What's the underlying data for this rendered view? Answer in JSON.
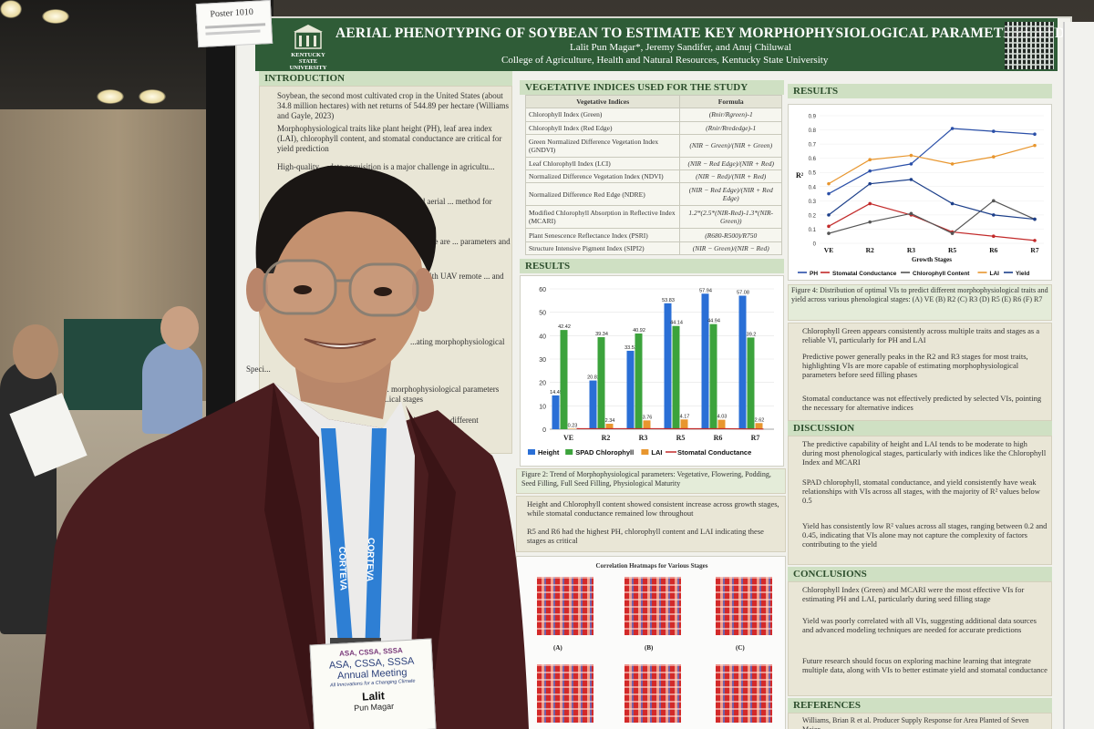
{
  "poster": {
    "title": "AERIAL PHENOTYPING OF SOYBEAN TO ESTIMATE KEY MORPHOPHYSIOLOGICAL PARAMETERS AND YIELD",
    "authors": "Lalit Pun Magar*, Jeremy Sandifer, and Anuj Chiluwal",
    "affiliation": "College of Agriculture, Health and Natural Resources, Kentucky State University",
    "logo_text": "KENTUCKY STATE UNIVERSITY",
    "poster_tag": "Poster 1010",
    "sections": {
      "introduction": "INTRODUCTION",
      "vegetative_indices": "VEGETATIVE INDICES USED FOR THE STUDY",
      "results_left": "RESULTS",
      "results_right": "RESULTS",
      "discussion": "DISCUSSION",
      "conclusions": "CONCLUSIONS",
      "references": "REFERENCES"
    },
    "intro_text": [
      "Soybean, the second most cultivated crop in the United States (about 34.8 million hectares) with net returns of 544.89 per hectare (Williams and Gayle, 2023)",
      "Morphophysiological traits like plant height (PH), leaf area index (LAI), chlorophyll content, and stomatal conductance are critical for yield prediction",
      "High-quality ... data acquisition is a major challenge in agricultu...",
      "...P) using unmanned aerial ... method for monitoring",
      "...anopy reflectance are ... parameters and predict",
      "...cal data with UAV remote ... and yield",
      "...ating morphophysiological",
      "Speci...",
      "... morphophysiological parameters ...ical stages",
      "... yield across different"
    ],
    "vi_table": {
      "headers": [
        "Vegetative Indices",
        "Formula"
      ],
      "rows": [
        [
          "Chlorophyll Index (Green)",
          "(Rnir/Rgreen)-1"
        ],
        [
          "Chlorophyll Index (Red Edge)",
          "(Rnir/Rrededge)-1"
        ],
        [
          "Green Normalized Difference Vegetation Index (GNDVI)",
          "(NIR − Green)/(NIR + Green)"
        ],
        [
          "Leaf Chlorophyll Index (LCI)",
          "(NIR − Red Edge)/(NIR + Red)"
        ],
        [
          "Normalized Difference Vegetation Index (NDVI)",
          "(NIR − Red)/(NIR + Red)"
        ],
        [
          "Normalized Difference Red Edge (NDRE)",
          "(NIR − Red Edge)/(NIR + Red Edge)"
        ],
        [
          "Modified Chlorophyll Absorption in Reflective Index (MCARI)",
          "1.2*(2.5*(NIR-Red)-1.3*(NIR-Green))"
        ],
        [
          "Plant Senescence Reflectance Index (PSRI)",
          "(R680-R500)/R750"
        ],
        [
          "Structure Intensive Pigment Index (SIPI2)",
          "(NIR − Green)/(NIR − Red)"
        ]
      ]
    },
    "figure2_caption": "Figure 2: Trend of Morphophysiological parameters: Vegetative, Flowering, Podding, Seed Filling, Full Seed Filling, Physiological Maturity",
    "results_left_bullets": [
      "Height and Chlorophyll content showed consistent increase across growth stages, while stomatal conductance remained low throughout",
      "R5 and R6 had the highest PH, chlorophyll content and LAI indicating these stages as critical"
    ],
    "heatmap_title": "Correlation Heatmaps for Various Stages",
    "heatmap_labels": [
      "(A)",
      "(B)",
      "(C)"
    ],
    "figure4_caption": "Figure 4: Distribution of optimal VIs to predict different morphophysiological traits and yield across various phenological stages: (A) VE (B) R2 (C) R3 (D) R5 (E) R6 (F) R7",
    "results_right_bullets": [
      "Chlorophyll Green appears consistently across multiple traits and stages as a reliable VI, particularly for PH and LAI",
      "Predictive power generally peaks in the R2 and R3 stages for most traits, highlighting VIs are more capable of estimating morphophysiological parameters before seed filling phases",
      "Stomatal conductance was not effectively predicted by selected VIs, pointing the necessary for alternative indices"
    ],
    "discussion_bullets": [
      "The predictive capability of height and LAI tends to be moderate to high during most phenological stages, particularly with indices like the Chlorophyll Index and MCARI",
      "SPAD chlorophyll, stomatal conductance, and yield consistently have weak relationships with VIs across all stages, with the majority of R² values below 0.5",
      "Yield has consistently low R² values across all stages, ranging between 0.2 and 0.45, indicating that VIs alone may not capture the complexity of factors contributing to the yield"
    ],
    "conclusion_bullets": [
      "Chlorophyll Index (Green) and MCARI were the most effective VIs for estimating PH and LAI, particularly during seed filling stage",
      "Yield was poorly correlated with all VIs, suggesting additional data sources and advanced modeling techniques are needed for accurate predictions",
      "Future research should focus on exploring machine learning that integrate multiple data, along with VIs to better estimate yield and stomatal conductance"
    ],
    "reference_text": "Williams, Brian R et al. Producer Supply Response for Area Planted of Seven Major"
  },
  "badge": {
    "org": "ASA, CSSA, SSSA",
    "event": "Annual Meeting",
    "event2": "",
    "tagline": "All Innovations for a Changing Climate",
    "name": "Lalit",
    "surname": "Pun Magar"
  },
  "lanyard": {
    "text": "CORTEVA"
  },
  "colors": {
    "banner": "#2f5c37",
    "section_head": "#cfe0c3",
    "jacket": "#4a1d1f"
  },
  "chart_data": [
    {
      "type": "bar",
      "title": "",
      "categories": [
        "VE",
        "R2",
        "R3",
        "R5",
        "R6",
        "R7"
      ],
      "series": [
        {
          "name": "Height",
          "color": "#2a6fd6",
          "values": [
            14.45,
            20.82,
            33.53,
            53.83,
            57.94,
            57.08
          ]
        },
        {
          "name": "SPAD Chlorophyll",
          "color": "#3ca33c",
          "values": [
            42.42,
            39.34,
            40.92,
            44.14,
            44.94,
            39.2
          ]
        },
        {
          "name": "LAI",
          "color": "#e8962e",
          "values": [
            0.23,
            2.34,
            3.76,
            4.17,
            4.03,
            2.62
          ]
        },
        {
          "name": "Stomatal Conductance",
          "color": "#c22a2a",
          "values": [
            0.23,
            0.21,
            0.22,
            0.2,
            0.21,
            0.08
          ]
        }
      ],
      "ylim": [
        0,
        60
      ],
      "yticks": [
        0,
        10,
        20,
        30,
        40,
        50,
        60
      ],
      "legend": "bottom"
    },
    {
      "type": "line",
      "title": "",
      "xlabel": "Growth Stages",
      "ylabel": "R²",
      "categories": [
        "VE",
        "R2",
        "R3",
        "R5",
        "R6",
        "R7"
      ],
      "ylim": [
        0,
        0.9
      ],
      "yticks": [
        0,
        0.1,
        0.2,
        0.3,
        0.4,
        0.5,
        0.6,
        0.7,
        0.8,
        0.9
      ],
      "legend": "bottom",
      "series": [
        {
          "name": "PH",
          "color": "#2a4fa8",
          "values": [
            0.35,
            0.51,
            0.56,
            0.81,
            0.79,
            0.77
          ]
        },
        {
          "name": "Stomatal Conductance",
          "color": "#c22a2a",
          "values": [
            0.12,
            0.28,
            0.2,
            0.08,
            0.05,
            0.02
          ]
        },
        {
          "name": "Chlorophyll Content",
          "color": "#555555",
          "values": [
            0.07,
            0.15,
            0.21,
            0.07,
            0.3,
            0.17
          ]
        },
        {
          "name": "LAI",
          "color": "#e8962e",
          "values": [
            0.42,
            0.59,
            0.62,
            0.56,
            0.61,
            0.69
          ]
        },
        {
          "name": "Yield",
          "color": "#1c3f8a",
          "values": [
            0.2,
            0.42,
            0.45,
            0.28,
            0.2,
            0.17
          ]
        }
      ]
    }
  ]
}
